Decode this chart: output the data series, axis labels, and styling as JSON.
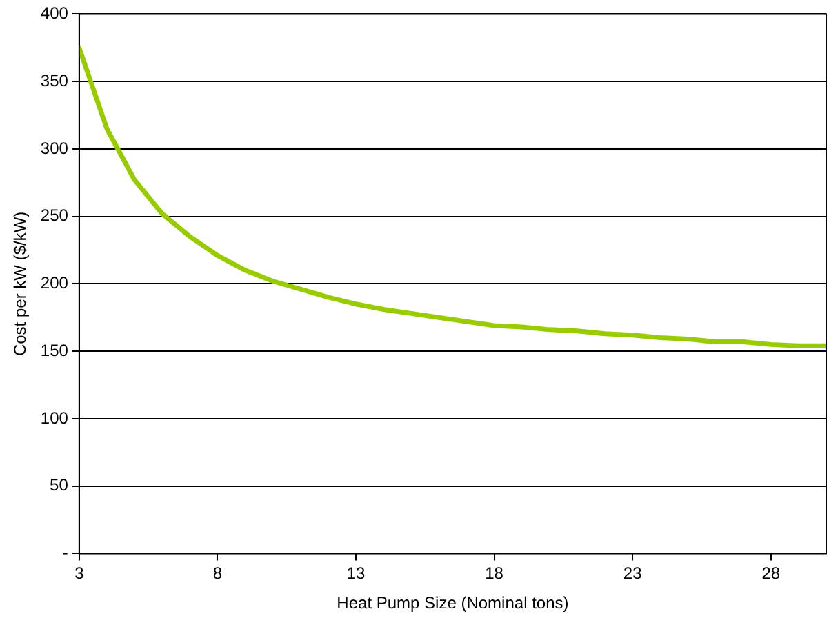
{
  "chart_data": {
    "type": "line",
    "xlabel": "Heat Pump Size (Nominal tons)",
    "ylabel": "Cost per kW ($/kW)",
    "x": [
      3,
      4,
      5,
      6,
      7,
      8,
      9,
      10,
      11,
      12,
      13,
      14,
      15,
      16,
      17,
      18,
      19,
      20,
      21,
      22,
      23,
      24,
      25,
      26,
      27,
      28,
      29,
      30
    ],
    "series": [
      {
        "color": "#99cc00",
        "values": [
          375,
          315,
          277,
          252,
          235,
          221,
          210,
          202,
          196,
          190,
          185,
          181,
          178,
          175,
          172,
          169,
          168,
          166,
          165,
          163,
          162,
          160,
          159,
          157,
          157,
          155,
          154,
          154
        ]
      }
    ],
    "xlim": [
      3,
      30
    ],
    "xticks": [
      3,
      8,
      13,
      18,
      23,
      28
    ],
    "ylim": [
      0,
      400
    ],
    "yticks": [
      {
        "value": 0,
        "label": "-"
      },
      50,
      100,
      150,
      200,
      250,
      300,
      350,
      400
    ],
    "grid": "y",
    "legend": false,
    "marker": "none",
    "line_style": "solid"
  }
}
